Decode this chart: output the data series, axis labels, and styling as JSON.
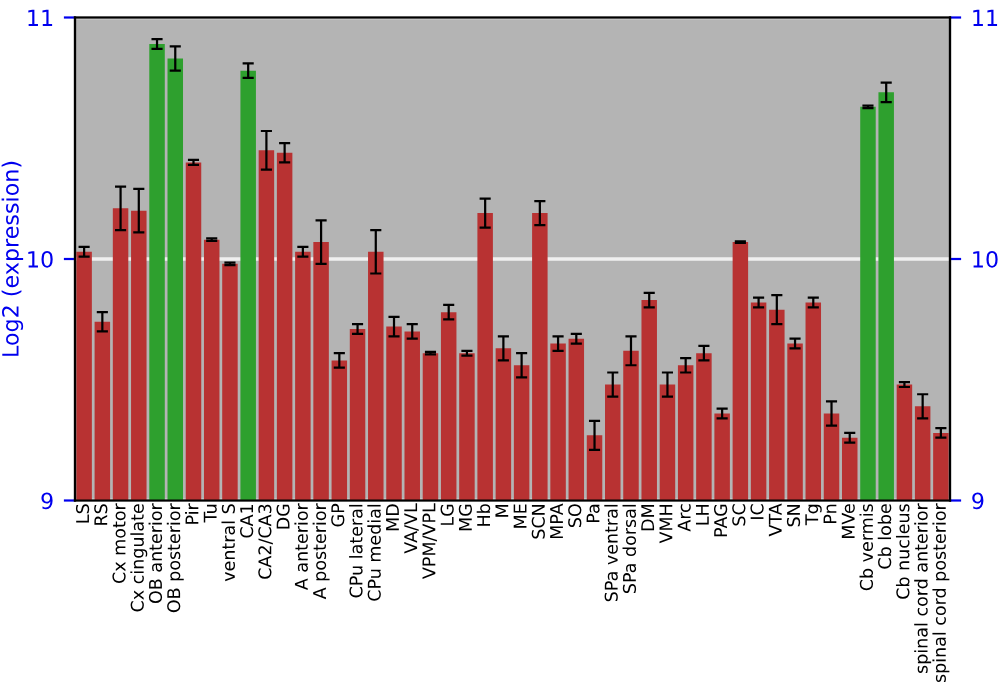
{
  "chart_data": {
    "type": "bar",
    "ylabel": "Log2 (expression)",
    "categories": [
      "LS",
      "RS",
      "Cx motor",
      "Cx cingulate",
      "OB anterior",
      "OB posterior",
      "Pir",
      "Tu",
      "ventral S",
      "CA1",
      "CA2/CA3",
      "DG",
      "A anterior",
      "A posterior",
      "GP",
      "CPu lateral",
      "CPu medial",
      "MD",
      "VA/VL",
      "VPM/VPL",
      "LG",
      "MG",
      "Hb",
      "M",
      "ME",
      "SCN",
      "MPA",
      "SO",
      "Pa",
      "SPa ventral",
      "SPa dorsal",
      "DM",
      "VMH",
      "Arc",
      "LH",
      "PAG",
      "SC",
      "IC",
      "VTA",
      "SN",
      "Tg",
      "Pn",
      "MVe",
      "Cb vermis",
      "Cb lobe",
      "Cb nucleus",
      "spinal cord anterior",
      "spinal cord posterior"
    ],
    "values": [
      10.03,
      9.74,
      10.21,
      10.2,
      10.89,
      10.83,
      10.4,
      10.08,
      9.98,
      10.78,
      10.45,
      10.44,
      10.03,
      10.07,
      9.58,
      9.71,
      10.03,
      9.72,
      9.7,
      9.61,
      9.78,
      9.61,
      10.19,
      9.63,
      9.56,
      10.19,
      9.65,
      9.67,
      9.27,
      9.48,
      9.62,
      9.83,
      9.48,
      9.56,
      9.61,
      9.36,
      10.07,
      9.82,
      9.79,
      9.65,
      9.82,
      9.36,
      9.26,
      10.63,
      10.69,
      9.48,
      9.39,
      9.28
    ],
    "errors": [
      0.02,
      0.04,
      0.09,
      0.09,
      0.02,
      0.05,
      0.01,
      0.005,
      0.005,
      0.03,
      0.08,
      0.04,
      0.02,
      0.09,
      0.03,
      0.02,
      0.09,
      0.04,
      0.03,
      0.005,
      0.03,
      0.01,
      0.06,
      0.05,
      0.05,
      0.05,
      0.03,
      0.02,
      0.06,
      0.05,
      0.06,
      0.03,
      0.05,
      0.03,
      0.03,
      0.02,
      0.003,
      0.02,
      0.06,
      0.02,
      0.02,
      0.05,
      0.02,
      0.005,
      0.04,
      0.01,
      0.05,
      0.02
    ],
    "colors": [
      "#b83232",
      "#b83232",
      "#b83232",
      "#b83232",
      "#2ea02e",
      "#2ea02e",
      "#b83232",
      "#b83232",
      "#b83232",
      "#2ea02e",
      "#b83232",
      "#b83232",
      "#b83232",
      "#b83232",
      "#b83232",
      "#b83232",
      "#b83232",
      "#b83232",
      "#b83232",
      "#b83232",
      "#b83232",
      "#b83232",
      "#b83232",
      "#b83232",
      "#b83232",
      "#b83232",
      "#b83232",
      "#b83232",
      "#b83232",
      "#b83232",
      "#b83232",
      "#b83232",
      "#b83232",
      "#b83232",
      "#b83232",
      "#b83232",
      "#b83232",
      "#b83232",
      "#b83232",
      "#b83232",
      "#b83232",
      "#b83232",
      "#b83232",
      "#2ea02e",
      "#2ea02e",
      "#b83232",
      "#b83232",
      "#b83232"
    ],
    "ylim": [
      9,
      11
    ],
    "yticks": [
      9,
      10,
      11
    ],
    "y2lim": [
      9,
      11
    ],
    "y2ticks": [
      9,
      10,
      11
    ],
    "grid": "y"
  }
}
